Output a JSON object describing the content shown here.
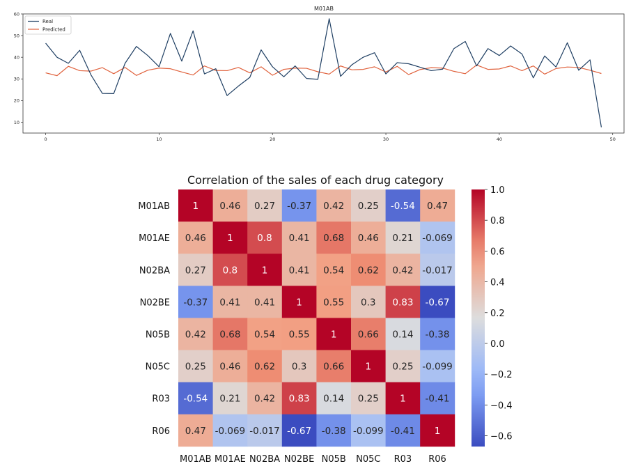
{
  "chart_data": [
    {
      "type": "line",
      "title": "M01AB",
      "xlim": [
        -2,
        51
      ],
      "ylim": [
        5,
        60
      ],
      "xticks": [
        0,
        10,
        20,
        30,
        40,
        50
      ],
      "yticks": [
        10,
        20,
        30,
        40,
        50,
        60
      ],
      "legend_position": "top-left",
      "series": [
        {
          "name": "Real",
          "color": "#1f3f63",
          "x": [
            0,
            1,
            2,
            3,
            4,
            5,
            6,
            7,
            8,
            9,
            10,
            11,
            12,
            13,
            14,
            15,
            16,
            17,
            18,
            19,
            20,
            21,
            22,
            23,
            24,
            25,
            26,
            27,
            28,
            29,
            30,
            31,
            32,
            33,
            34,
            35,
            36,
            37,
            38,
            39,
            40,
            41,
            42,
            43,
            44,
            45,
            46,
            47,
            48,
            49
          ],
          "values": [
            46.5,
            40,
            37.2,
            43.2,
            31.8,
            23.3,
            23.2,
            37.2,
            45,
            40.8,
            35.6,
            51,
            38.2,
            52.2,
            32.3,
            34.7,
            22.3,
            26.7,
            30.7,
            43.4,
            35.6,
            31,
            36,
            30.2,
            29.8,
            57.8,
            31.2,
            36.5,
            40,
            42.1,
            32.3,
            37.5,
            37,
            35.4,
            33.8,
            34.5,
            44,
            47.3,
            36,
            44,
            40.8,
            45.2,
            41.5,
            30.5,
            40.6,
            35.5,
            46.7,
            34,
            38.8,
            7.7
          ]
        },
        {
          "name": "Predicted",
          "color": "#e0623d",
          "x": [
            0,
            1,
            2,
            3,
            4,
            5,
            6,
            7,
            8,
            9,
            10,
            11,
            12,
            13,
            14,
            15,
            16,
            17,
            18,
            19,
            20,
            21,
            22,
            23,
            24,
            25,
            26,
            27,
            28,
            29,
            30,
            31,
            32,
            33,
            34,
            35,
            36,
            37,
            38,
            39,
            40,
            41,
            42,
            43,
            44,
            45,
            46,
            47,
            48,
            49
          ],
          "values": [
            32.8,
            31.5,
            35.8,
            33.8,
            33.6,
            35.2,
            32.4,
            35.3,
            31.6,
            34,
            35,
            34.7,
            33.2,
            31.8,
            36,
            33.9,
            33.8,
            35.3,
            32.8,
            35.6,
            31.7,
            34.4,
            35,
            34.9,
            33.3,
            32.2,
            36,
            34.2,
            34.4,
            35.6,
            33.2,
            35.8,
            32,
            34.3,
            35.2,
            35,
            33.5,
            32.4,
            36.4,
            34.4,
            34.6,
            36,
            33.8,
            36,
            32.2,
            34.8,
            35.5,
            35.3,
            34,
            32.5
          ]
        }
      ]
    },
    {
      "type": "heatmap",
      "title": "Correlation of the sales of each drug category",
      "rows": [
        "M01AB",
        "M01AE",
        "N02BA",
        "N02BE",
        "N05B",
        "N05C",
        "R03",
        "R06"
      ],
      "cols": [
        "M01AB",
        "M01AE",
        "N02BA",
        "N02BE",
        "N05B",
        "N05C",
        "R03",
        "R06"
      ],
      "values": [
        [
          1,
          0.46,
          0.27,
          -0.37,
          0.42,
          0.25,
          -0.54,
          0.47
        ],
        [
          0.46,
          1,
          0.8,
          0.41,
          0.68,
          0.46,
          0.21,
          -0.069
        ],
        [
          0.27,
          0.8,
          1,
          0.41,
          0.54,
          0.62,
          0.42,
          -0.017
        ],
        [
          -0.37,
          0.41,
          0.41,
          1,
          0.55,
          0.3,
          0.83,
          -0.67
        ],
        [
          0.42,
          0.68,
          0.54,
          0.55,
          1,
          0.66,
          0.14,
          -0.38
        ],
        [
          0.25,
          0.46,
          0.62,
          0.3,
          0.66,
          1,
          0.25,
          -0.099
        ],
        [
          -0.54,
          0.21,
          0.42,
          0.83,
          0.14,
          0.25,
          1,
          -0.41
        ],
        [
          0.47,
          -0.069,
          -0.017,
          -0.67,
          -0.38,
          -0.099,
          -0.41,
          1
        ]
      ],
      "value_labels": [
        [
          "1",
          "0.46",
          "0.27",
          "-0.37",
          "0.42",
          "0.25",
          "-0.54",
          "0.47"
        ],
        [
          "0.46",
          "1",
          "0.8",
          "0.41",
          "0.68",
          "0.46",
          "0.21",
          "-0.069"
        ],
        [
          "0.27",
          "0.8",
          "1",
          "0.41",
          "0.54",
          "0.62",
          "0.42",
          "-0.017"
        ],
        [
          "-0.37",
          "0.41",
          "0.41",
          "1",
          "0.55",
          "0.3",
          "0.83",
          "-0.67"
        ],
        [
          "0.42",
          "0.68",
          "0.54",
          "0.55",
          "1",
          "0.66",
          "0.14",
          "-0.38"
        ],
        [
          "0.25",
          "0.46",
          "0.62",
          "0.3",
          "0.66",
          "1",
          "0.25",
          "-0.099"
        ],
        [
          "-0.54",
          "0.21",
          "0.42",
          "0.83",
          "0.14",
          "0.25",
          "1",
          "-0.41"
        ],
        [
          "0.47",
          "-0.069",
          "-0.017",
          "-0.67",
          "-0.38",
          "-0.099",
          "-0.41",
          "1"
        ]
      ],
      "colormap": "coolwarm",
      "vmin": -0.67,
      "vmax": 1.0,
      "colorbar_ticks": [
        1.0,
        0.8,
        0.6,
        0.4,
        0.2,
        0.0,
        -0.2,
        -0.4,
        -0.6
      ],
      "colorbar_tick_labels": [
        "1.0",
        "0.8",
        "0.6",
        "0.4",
        "0.2",
        "0.0",
        "−0.2",
        "−0.4",
        "−0.6"
      ]
    }
  ]
}
